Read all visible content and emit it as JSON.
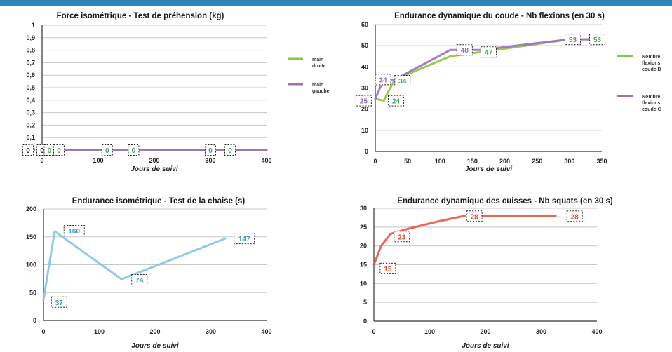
{
  "chart_data": [
    {
      "type": "line",
      "title": "Force isométrique - Test de préhension (kg)",
      "xlabel": "Jours de suivi",
      "xlim": [
        0,
        400
      ],
      "xticks": [
        0,
        100,
        200,
        300,
        400
      ],
      "ylim": [
        0,
        1
      ],
      "yticks": [
        0,
        0.1,
        0.2,
        0.3,
        0.4,
        0.5,
        0.6,
        0.7,
        0.8,
        0.9,
        1
      ],
      "ytick_labels": [
        "0",
        "0,1",
        "0,2",
        "0,3",
        "0,4",
        "0,5",
        "0,6",
        "0,7",
        "0,8",
        "0,9",
        "1"
      ],
      "grid": true,
      "legend": "right",
      "series": [
        {
          "name": "main droite",
          "color": "#8cc63f",
          "x": [
            0,
            13,
            30,
            116,
            163,
            300,
            335,
            400
          ],
          "y": [
            0,
            0,
            0,
            0,
            0,
            0,
            0,
            0
          ]
        },
        {
          "name": "main gauche",
          "color": "#9b6fbf",
          "x": [
            0,
            13,
            30,
            116,
            163,
            300,
            335,
            400
          ],
          "y": [
            0,
            0,
            0,
            0,
            0,
            0,
            0,
            0
          ]
        }
      ],
      "data_labels": [
        {
          "x": -25,
          "y": 0,
          "text": "0",
          "color": "#222"
        },
        {
          "x": 0,
          "y": 0,
          "text": "0",
          "color": "#222"
        },
        {
          "x": 13,
          "y": 0,
          "text": "0",
          "color": "#4aa35a"
        },
        {
          "x": 30,
          "y": 0,
          "text": "0",
          "color": "#4aa35a"
        },
        {
          "x": 116,
          "y": 0,
          "text": "0",
          "color": "#4aa35a"
        },
        {
          "x": 163,
          "y": 0,
          "text": "0",
          "color": "#4aa35a"
        },
        {
          "x": 300,
          "y": 0,
          "text": "0",
          "color": "#4aa35a"
        },
        {
          "x": 335,
          "y": 0,
          "text": "0",
          "color": "#4aa35a"
        }
      ]
    },
    {
      "type": "line",
      "title": "Endurance dynamique du coude - Nb flexions (en 30 s)",
      "xlabel": "Jours de suivi",
      "xlim": [
        0,
        350
      ],
      "xticks": [
        0,
        50,
        100,
        150,
        200,
        250,
        300,
        350
      ],
      "ylim": [
        0,
        60
      ],
      "yticks": [
        0,
        10,
        20,
        30,
        40,
        50,
        60
      ],
      "grid": true,
      "legend": "right",
      "series": [
        {
          "name": "Nombre flexions coude D",
          "color": "#8cc63f",
          "x": [
            0,
            13,
            30,
            116,
            163,
            300,
            335
          ],
          "y": [
            25,
            24,
            34,
            45,
            47,
            53,
            53
          ]
        },
        {
          "name": "Nombre flexions coude G",
          "color": "#9b6fbf",
          "x": [
            0,
            13,
            30,
            116,
            163,
            300,
            335
          ],
          "y": [
            25,
            34,
            34,
            48,
            48,
            53,
            53
          ]
        }
      ],
      "data_labels": [
        {
          "x": -18,
          "y": 24,
          "text": "25",
          "color": "#8e6bb8"
        },
        {
          "x": 12,
          "y": 34,
          "text": "34",
          "color": "#8e6bb8"
        },
        {
          "x": 32,
          "y": 24,
          "text": "24",
          "color": "#4aa35a"
        },
        {
          "x": 42,
          "y": 33.5,
          "text": "34",
          "color": "#4aa35a"
        },
        {
          "x": 138,
          "y": 48,
          "text": "48",
          "color": "#8e6bb8"
        },
        {
          "x": 175,
          "y": 47,
          "text": "47",
          "color": "#4aa35a"
        },
        {
          "x": 305,
          "y": 53,
          "text": "53",
          "color": "#8e6bb8"
        },
        {
          "x": 343,
          "y": 53,
          "text": "53",
          "color": "#4aa35a"
        }
      ]
    },
    {
      "type": "line",
      "title": "Endurance isométrique - Test de la chaise (s)",
      "xlabel": "Jours de suivi",
      "xlim": [
        0,
        400
      ],
      "xticks": [
        0,
        100,
        200,
        300,
        400
      ],
      "ylim": [
        0,
        200
      ],
      "yticks": [
        0,
        50,
        100,
        150,
        200
      ],
      "grid": true,
      "legend": "none",
      "series": [
        {
          "color": "#7fc6e4",
          "x": [
            0,
            20,
            140,
            326
          ],
          "y": [
            37,
            160,
            74,
            147
          ]
        }
      ],
      "data_labels": [
        {
          "x": 28,
          "y": 33,
          "text": "37",
          "color": "#3d8fc4"
        },
        {
          "x": 55,
          "y": 161,
          "text": "160",
          "color": "#3d8fc4"
        },
        {
          "x": 172,
          "y": 73,
          "text": "74",
          "color": "#3d8fc4"
        },
        {
          "x": 360,
          "y": 147,
          "text": "147",
          "color": "#3d8fc4"
        }
      ]
    },
    {
      "type": "line",
      "title": "Endurance dynamique des cuisses - Nb squats (en 30 s)",
      "xlabel": "Jours de suivi",
      "xlim": [
        0,
        400
      ],
      "xticks": [
        0,
        100,
        200,
        300,
        400
      ],
      "ylim": [
        0,
        30
      ],
      "yticks": [
        0,
        5,
        10,
        15,
        20,
        25,
        30
      ],
      "grid": true,
      "legend": "none",
      "series": [
        {
          "color": "#e8583c",
          "x": [
            0,
            13,
            30,
            60,
            115,
            163,
            326
          ],
          "y": [
            15,
            20,
            23.2,
            24.5,
            26.5,
            28,
            28
          ]
        }
      ],
      "data_labels": [
        {
          "x": 25,
          "y": 14,
          "text": "15",
          "color": "#e04a2e"
        },
        {
          "x": 50,
          "y": 22.5,
          "text": "23",
          "color": "#e04a2e"
        },
        {
          "x": 180,
          "y": 27.9,
          "text": "28",
          "color": "#e04a2e"
        },
        {
          "x": 360,
          "y": 27.9,
          "text": "28",
          "color": "#e04a2e"
        }
      ]
    }
  ]
}
